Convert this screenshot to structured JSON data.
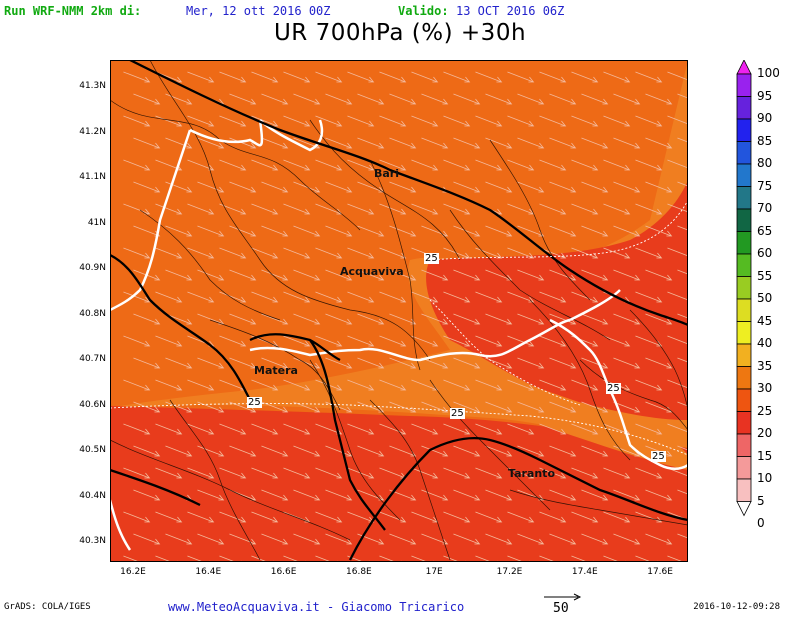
{
  "header": {
    "run_label": "Run WRF-NMM 2km di:",
    "run_date": "Mer, 12 ott 2016 00Z",
    "valid_label": "Valido:",
    "valid_date": "13 OCT 2016 06Z",
    "title": "UR 700hPa (%) +30h"
  },
  "map": {
    "lat_ticks": [
      "41.3N",
      "41.2N",
      "41.1N",
      "41N",
      "40.9N",
      "40.8N",
      "40.7N",
      "40.6N",
      "40.5N",
      "40.4N",
      "40.3N"
    ],
    "lon_ticks": [
      "16.2E",
      "16.4E",
      "16.6E",
      "16.8E",
      "17E",
      "17.2E",
      "17.4E",
      "17.6E"
    ],
    "cities": [
      "Bari",
      "Acquaviva",
      "Matera",
      "Taranto"
    ],
    "contour_label": "25",
    "fill_colors": {
      "band_30_35": "#ee6a16",
      "band_20_25": "#e83c1c",
      "band_25_30": "#f07e20"
    }
  },
  "colorbar": {
    "labels": [
      "100",
      "95",
      "90",
      "85",
      "80",
      "75",
      "70",
      "65",
      "60",
      "55",
      "50",
      "45",
      "40",
      "35",
      "30",
      "25",
      "20",
      "15",
      "10",
      "5",
      "0"
    ],
    "colors": [
      "#ee22ee",
      "#9922ee",
      "#6622dd",
      "#2222ee",
      "#2255dd",
      "#2277cc",
      "#227788",
      "#116644",
      "#229922",
      "#55bb22",
      "#99cc22",
      "#dddd22",
      "#eeee22",
      "#f2b020",
      "#ee7711",
      "#ee5511",
      "#e83322",
      "#ee6666",
      "#f49a9a",
      "#f8c0c0"
    ]
  },
  "footer": {
    "grads": "GrADS: COLA/IGES",
    "site": "www.MeteoAcquaviva.it - Giacomo Tricarico",
    "vector_ref": "50",
    "timestamp": "2016-10-12-09:28"
  }
}
